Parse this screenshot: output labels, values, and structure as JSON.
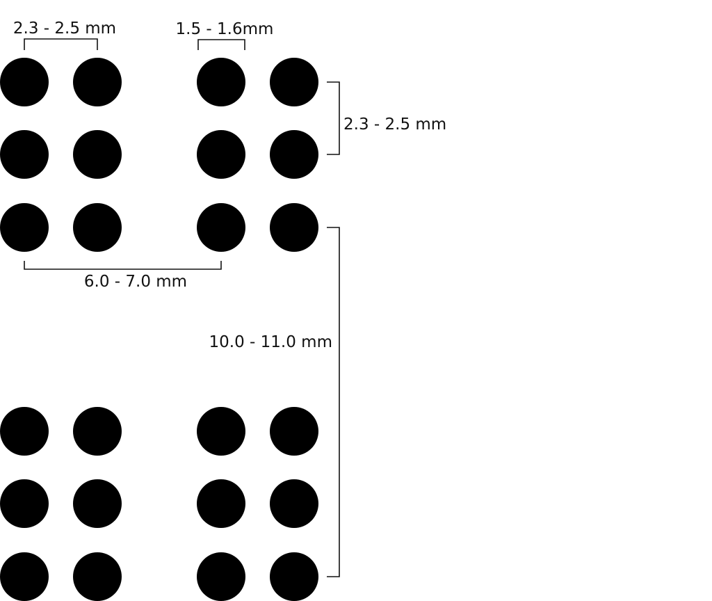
{
  "colors": {
    "dot": "#000000",
    "line": "#111111",
    "background": "#ffffff"
  },
  "labels": {
    "dot_spacing_horizontal": "2.3 - 2.5 mm",
    "dot_diameter": "1.5 - 1.6mm",
    "dot_spacing_vertical": "2.3 - 2.5 mm",
    "cell_spacing": "6.0 - 7.0 mm",
    "line_spacing": "10.0 - 11.0 mm"
  },
  "braille_cells": [
    {
      "row": 1,
      "col": 1,
      "dots_filled": 6
    },
    {
      "row": 1,
      "col": 2,
      "dots_filled": 6
    },
    {
      "row": 2,
      "col": 1,
      "dots_filled": 6
    },
    {
      "row": 2,
      "col": 2,
      "dots_filled": 6
    }
  ]
}
